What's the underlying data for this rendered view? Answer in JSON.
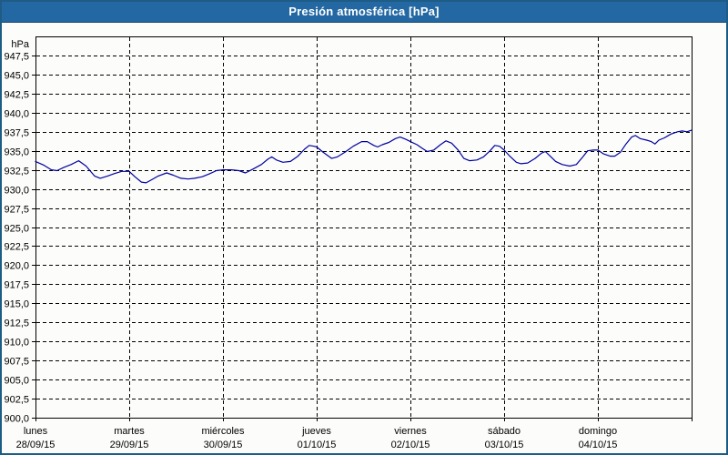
{
  "window": {
    "title": "Presión atmosférica [hPa]"
  },
  "colors": {
    "titlebar_bg": "#2368a2",
    "titlebar_edge": "#17486e",
    "title_text": "#ffffff",
    "frame_border": "#1d5c84",
    "page_bg": "#fcfdfa",
    "line": "#0000a0",
    "grid": "#000000",
    "axis": "#000000",
    "label_text": "#000000"
  },
  "chart_data": {
    "type": "line",
    "title": "Presión atmosférica [hPa]",
    "ylabel": "hPa",
    "grid": "dashed",
    "legend_position": "none",
    "y_axis": {
      "min": 900,
      "max": 950,
      "tick_step": 2.5,
      "tick_values": [
        947.5,
        945.0,
        942.5,
        940.0,
        937.5,
        935.0,
        932.5,
        930.0,
        927.5,
        925.0,
        922.5,
        920.0,
        917.5,
        915.0,
        912.5,
        910.0,
        907.5,
        905.0,
        902.5,
        900.0
      ],
      "tick_labels": [
        "947,5",
        "945,0",
        "942,5",
        "940,0",
        "937,5",
        "935,0",
        "932,5",
        "930,0",
        "927,5",
        "925,0",
        "922,5",
        "920,0",
        "917,5",
        "915,0",
        "912,5",
        "910,0",
        "907,5",
        "905,0",
        "902,5",
        "900,0"
      ],
      "unit_label": "hPa"
    },
    "x_axis": {
      "span_days": 7,
      "days": [
        {
          "name": "lunes",
          "date": "28/09/15"
        },
        {
          "name": "martes",
          "date": "29/09/15"
        },
        {
          "name": "miércoles",
          "date": "30/09/15"
        },
        {
          "name": "jueves",
          "date": "01/10/15"
        },
        {
          "name": "viernes",
          "date": "02/10/15"
        },
        {
          "name": "sábado",
          "date": "03/10/15"
        },
        {
          "name": "domingo",
          "date": "04/10/15"
        }
      ]
    },
    "series": [
      {
        "name": "Presión atmosférica",
        "color": "#0000a0",
        "points": [
          [
            0.0,
            933.6
          ],
          [
            0.09,
            933.1
          ],
          [
            0.17,
            932.5
          ],
          [
            0.23,
            932.4
          ],
          [
            0.3,
            932.8
          ],
          [
            0.38,
            933.2
          ],
          [
            0.46,
            933.7
          ],
          [
            0.54,
            933.0
          ],
          [
            0.63,
            931.7
          ],
          [
            0.69,
            931.4
          ],
          [
            0.77,
            931.7
          ],
          [
            0.84,
            932.0
          ],
          [
            0.92,
            932.3
          ],
          [
            1.0,
            932.3
          ],
          [
            1.06,
            931.6
          ],
          [
            1.13,
            930.9
          ],
          [
            1.18,
            930.8
          ],
          [
            1.24,
            931.2
          ],
          [
            1.31,
            931.7
          ],
          [
            1.4,
            932.1
          ],
          [
            1.47,
            931.8
          ],
          [
            1.55,
            931.4
          ],
          [
            1.63,
            931.3
          ],
          [
            1.7,
            931.4
          ],
          [
            1.78,
            931.6
          ],
          [
            1.86,
            932.0
          ],
          [
            1.93,
            932.4
          ],
          [
            2.0,
            932.5
          ],
          [
            2.09,
            932.5
          ],
          [
            2.17,
            932.4
          ],
          [
            2.24,
            932.1
          ],
          [
            2.32,
            932.6
          ],
          [
            2.41,
            933.2
          ],
          [
            2.48,
            933.9
          ],
          [
            2.52,
            934.2
          ],
          [
            2.57,
            933.8
          ],
          [
            2.64,
            933.5
          ],
          [
            2.72,
            933.6
          ],
          [
            2.8,
            934.3
          ],
          [
            2.87,
            935.2
          ],
          [
            2.92,
            935.7
          ],
          [
            2.97,
            935.6
          ],
          [
            3.0,
            935.5
          ],
          [
            3.07,
            934.8
          ],
          [
            3.16,
            934.0
          ],
          [
            3.22,
            934.2
          ],
          [
            3.3,
            934.8
          ],
          [
            3.39,
            935.6
          ],
          [
            3.48,
            936.2
          ],
          [
            3.54,
            936.2
          ],
          [
            3.61,
            935.7
          ],
          [
            3.65,
            935.5
          ],
          [
            3.7,
            935.8
          ],
          [
            3.77,
            936.1
          ],
          [
            3.84,
            936.6
          ],
          [
            3.89,
            936.8
          ],
          [
            3.95,
            936.5
          ],
          [
            4.0,
            936.2
          ],
          [
            4.07,
            935.8
          ],
          [
            4.13,
            935.3
          ],
          [
            4.18,
            934.9
          ],
          [
            4.25,
            935.1
          ],
          [
            4.32,
            935.8
          ],
          [
            4.38,
            936.3
          ],
          [
            4.44,
            936.0
          ],
          [
            4.51,
            935.1
          ],
          [
            4.57,
            934.0
          ],
          [
            4.63,
            933.7
          ],
          [
            4.71,
            933.8
          ],
          [
            4.78,
            934.2
          ],
          [
            4.85,
            935.0
          ],
          [
            4.9,
            935.7
          ],
          [
            4.95,
            935.6
          ],
          [
            5.0,
            935.1
          ],
          [
            5.06,
            934.3
          ],
          [
            5.13,
            933.5
          ],
          [
            5.18,
            933.3
          ],
          [
            5.25,
            933.4
          ],
          [
            5.33,
            934.0
          ],
          [
            5.4,
            934.7
          ],
          [
            5.44,
            934.9
          ],
          [
            5.5,
            934.2
          ],
          [
            5.55,
            933.6
          ],
          [
            5.62,
            933.2
          ],
          [
            5.7,
            933.0
          ],
          [
            5.77,
            933.2
          ],
          [
            5.84,
            934.2
          ],
          [
            5.89,
            935.0
          ],
          [
            5.95,
            935.1
          ],
          [
            6.0,
            935.1
          ],
          [
            6.06,
            934.6
          ],
          [
            6.13,
            934.3
          ],
          [
            6.18,
            934.3
          ],
          [
            6.24,
            934.8
          ],
          [
            6.3,
            935.9
          ],
          [
            6.36,
            936.8
          ],
          [
            6.4,
            937.0
          ],
          [
            6.45,
            936.6
          ],
          [
            6.52,
            936.4
          ],
          [
            6.57,
            936.2
          ],
          [
            6.61,
            935.9
          ],
          [
            6.65,
            936.4
          ],
          [
            6.71,
            936.7
          ],
          [
            6.78,
            937.2
          ],
          [
            6.85,
            937.5
          ],
          [
            6.9,
            937.6
          ],
          [
            6.95,
            937.5
          ],
          [
            7.0,
            937.7
          ]
        ]
      }
    ]
  }
}
